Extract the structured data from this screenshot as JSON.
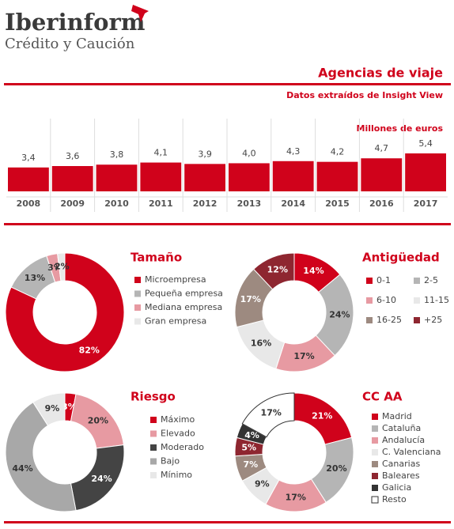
{
  "header": {
    "brand": "Iberinform",
    "tagline": "Crédito y Caución"
  },
  "title": "Agencias de viaje",
  "subtitle": "Datos extraídos de Insight View",
  "chart_data": [
    {
      "type": "bar",
      "unit_label": "Millones de euros",
      "categories": [
        "2008",
        "2009",
        "2010",
        "2011",
        "2012",
        "2013",
        "2014",
        "2015",
        "2016",
        "2017"
      ],
      "values": [
        3.4,
        3.6,
        3.8,
        4.1,
        3.9,
        4.0,
        4.3,
        4.2,
        4.7,
        5.4
      ],
      "value_labels": [
        "3,4",
        "3,6",
        "3,8",
        "4,1",
        "3,9",
        "4,0",
        "4,3",
        "4,2",
        "4,7",
        "5,4"
      ],
      "color": "#d0021b"
    },
    {
      "type": "donut",
      "title": "Tamaño",
      "categories": [
        "Microempresa",
        "Pequeña empresa",
        "Mediana empresa",
        "Gran empresa"
      ],
      "values": [
        82,
        13,
        3,
        2
      ],
      "value_labels": [
        "82%",
        "13%",
        "3%",
        "2%"
      ],
      "colors": [
        "#d0021b",
        "#b5b5b5",
        "#e79aa2",
        "#e8e8e8"
      ]
    },
    {
      "type": "donut",
      "title": "Antigüedad",
      "categories": [
        "0-1",
        "2-5",
        "6-10",
        "11-15",
        "16-25",
        "+25"
      ],
      "values": [
        14,
        24,
        17,
        16,
        17,
        12
      ],
      "value_labels": [
        "14%",
        "24%",
        "17%",
        "16%",
        "17%",
        "12%"
      ],
      "colors": [
        "#d0021b",
        "#b5b5b5",
        "#e79aa2",
        "#e8e8e8",
        "#9d8a80",
        "#8e2630"
      ]
    },
    {
      "type": "donut",
      "title": "Riesgo",
      "categories": [
        "Máximo",
        "Elevado",
        "Moderado",
        "Bajo",
        "Mínimo"
      ],
      "values": [
        3,
        20,
        24,
        44,
        9
      ],
      "value_labels": [
        "3%",
        "20%",
        "24%",
        "44%",
        "9%"
      ],
      "colors": [
        "#d0021b",
        "#e79aa2",
        "#444444",
        "#a8a8a8",
        "#e8e8e8"
      ]
    },
    {
      "type": "donut",
      "title": "CC AA",
      "categories": [
        "Madrid",
        "Cataluña",
        "Andalucía",
        "C. Valenciana",
        "Canarias",
        "Baleares",
        "Galicia",
        "Resto"
      ],
      "values": [
        21,
        20,
        17,
        9,
        7,
        5,
        4,
        17
      ],
      "value_labels": [
        "21%",
        "20%",
        "17%",
        "9%",
        "7%",
        "5%",
        "4%",
        "17%"
      ],
      "colors": [
        "#d0021b",
        "#b5b5b5",
        "#e79aa2",
        "#e8e8e8",
        "#9d8a80",
        "#8e2630",
        "#333333",
        "#ffffff"
      ]
    }
  ]
}
